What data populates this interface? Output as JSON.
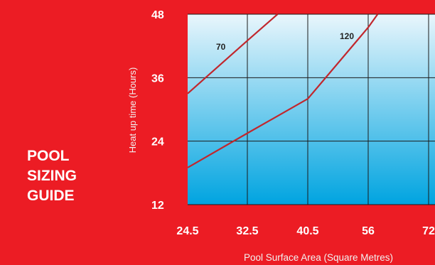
{
  "side_title": {
    "lines": [
      "POOL",
      "SIZING",
      "GUIDE"
    ]
  },
  "colors": {
    "background": "#ec1c24",
    "plot_top": "#e9f6fc",
    "plot_bottom": "#00a4e0",
    "line": "#c1272d",
    "grid": "#1a1a1a"
  },
  "chart_data": {
    "type": "line",
    "xlabel": "Pool Surface Area (Square Metres)",
    "ylabel": "Heat up time (Hours)",
    "x_ticks": [
      "24.5",
      "32.5",
      "40.5",
      "56",
      "72"
    ],
    "y_ticks": [
      48,
      36,
      24,
      12
    ],
    "ylim": [
      12,
      48
    ],
    "grid": true,
    "series": [
      {
        "name": "70",
        "points": [
          {
            "x": "24.5",
            "y": 33
          },
          {
            "x": "32.5",
            "y": 43
          },
          {
            "x": "36.5",
            "y": 48
          }
        ]
      },
      {
        "name": "120",
        "points": [
          {
            "x": "24.5",
            "y": 19
          },
          {
            "x": "32.5",
            "y": 25.5
          },
          {
            "x": "40.5",
            "y": 32
          },
          {
            "x": "56",
            "y": 45.5
          },
          {
            "x": "58.5",
            "y": 48
          }
        ]
      }
    ]
  }
}
